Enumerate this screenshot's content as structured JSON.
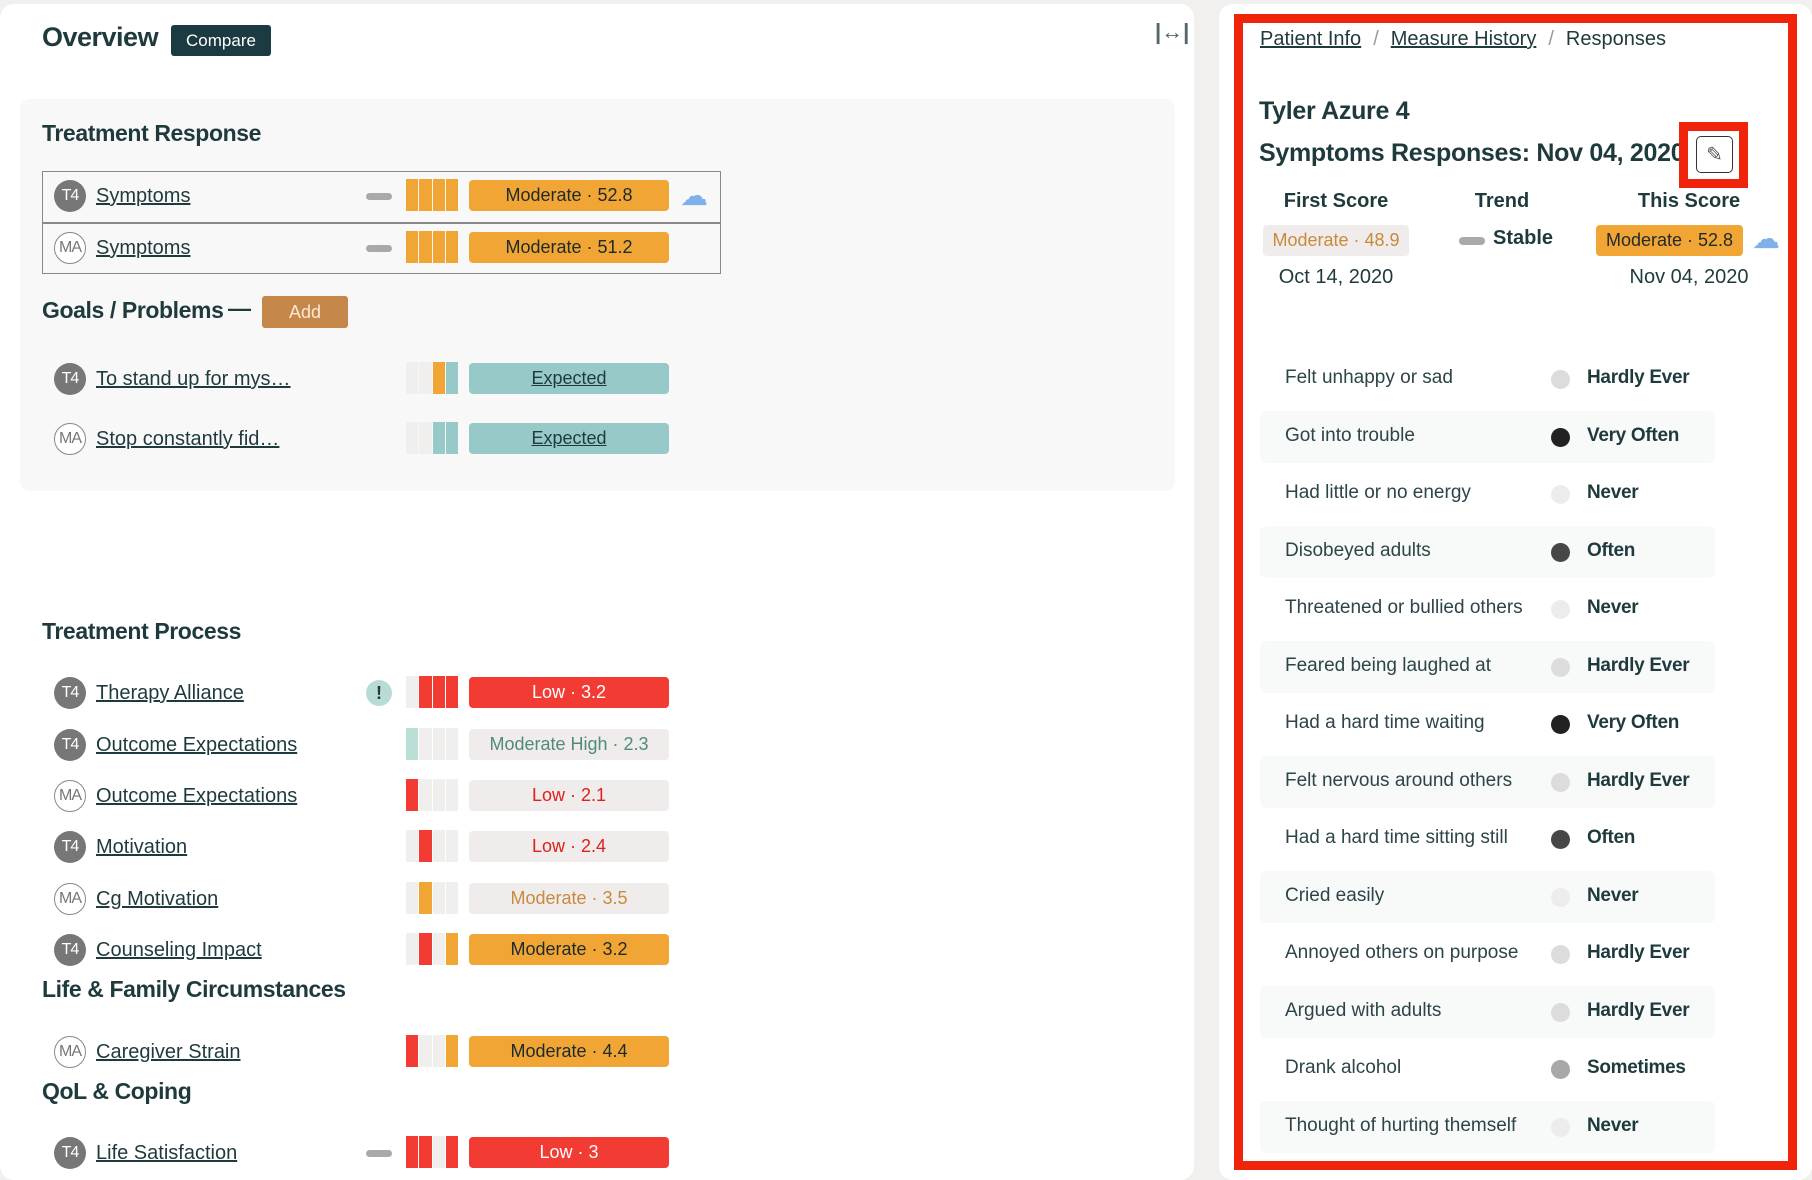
{
  "colors": {
    "orange": "#f0a535",
    "red": "#f23c33",
    "teal": "#97c9c9",
    "mint": "#b9dfd6",
    "empty": "#f0efee",
    "accent_dark": "#1c3a42",
    "highlight": "#f0240a"
  },
  "overview": {
    "title": "Overview",
    "compare_label": "Compare",
    "expand_icon": "expand-horizontal-icon"
  },
  "treatment_response": {
    "heading": "Treatment Response",
    "rows": [
      {
        "badge": "T4",
        "name": "Symptoms",
        "trend": "dash",
        "bars": [
          "orange",
          "orange",
          "orange",
          "orange"
        ],
        "score": "Moderate · 52.8",
        "style": "orange",
        "icon": "rain-cloud-icon"
      },
      {
        "badge": "MA",
        "name": "Symptoms",
        "trend": "dash",
        "bars": [
          "orange",
          "orange",
          "orange",
          "orange"
        ],
        "score": "Moderate · 51.2",
        "style": "orange"
      }
    ]
  },
  "goals": {
    "heading": "Goals / Problems",
    "dash": "—",
    "add_label": "Add",
    "rows": [
      {
        "badge": "T4",
        "name": "To stand up for mys…",
        "bars": [
          "empty",
          "empty",
          "orange",
          "teal"
        ],
        "score": "Expected",
        "style": "teal"
      },
      {
        "badge": "MA",
        "name": "Stop constantly fid…",
        "bars": [
          "empty",
          "empty",
          "teal",
          "teal"
        ],
        "score": "Expected",
        "style": "teal"
      }
    ]
  },
  "treatment_process": {
    "heading": "Treatment Process",
    "rows": [
      {
        "badge": "T4",
        "name": "Therapy Alliance",
        "trend": "alert",
        "alert": "!",
        "bars": [
          "empty",
          "red",
          "red",
          "red"
        ],
        "score": "Low · 3.2",
        "style": "red"
      },
      {
        "badge": "T4",
        "name": "Outcome Expectations",
        "bars": [
          "mint",
          "empty",
          "empty",
          "empty"
        ],
        "score": "Moderate High · 2.3",
        "style": "gray-green"
      },
      {
        "badge": "MA",
        "name": "Outcome Expectations",
        "bars": [
          "red",
          "empty",
          "empty",
          "empty"
        ],
        "score": "Low · 2.1",
        "style": "gray-red"
      },
      {
        "badge": "T4",
        "name": "Motivation",
        "bars": [
          "empty",
          "red",
          "empty",
          "empty"
        ],
        "score": "Low · 2.4",
        "style": "gray-red"
      },
      {
        "badge": "MA",
        "name": "Cg Motivation",
        "bars": [
          "empty",
          "orange",
          "empty",
          "empty"
        ],
        "score": "Moderate · 3.5",
        "style": "gray-orange"
      },
      {
        "badge": "T4",
        "name": "Counseling Impact",
        "bars": [
          "empty",
          "red",
          "empty",
          "orange"
        ],
        "score": "Moderate · 3.2",
        "style": "orange"
      }
    ]
  },
  "life_family": {
    "heading": "Life & Family Circumstances",
    "rows": [
      {
        "badge": "MA",
        "name": "Caregiver Strain",
        "bars": [
          "red",
          "empty",
          "empty",
          "orange"
        ],
        "score": "Moderate · 4.4",
        "style": "orange"
      }
    ]
  },
  "qol": {
    "heading": "QoL & Coping",
    "rows": [
      {
        "badge": "T4",
        "name": "Life Satisfaction",
        "trend": "dash",
        "bars": [
          "red",
          "red",
          "empty",
          "red"
        ],
        "score": "Low · 3",
        "style": "red"
      }
    ]
  },
  "detail": {
    "breadcrumb": {
      "patient_info": "Patient Info",
      "measure_history": "Measure History",
      "current": "Responses",
      "separator": "/"
    },
    "patient_name": "Tyler Azure 4",
    "title": "Symptoms Responses: Nov 04, 2020",
    "edit_icon": "pencil-icon",
    "first_score": {
      "header": "First Score",
      "value": "Moderate · 48.9",
      "date": "Oct 14, 2020"
    },
    "trend": {
      "header": "Trend",
      "value": "Stable"
    },
    "this_score": {
      "header": "This Score",
      "value": "Moderate · 52.8",
      "date": "Nov 04, 2020",
      "icon": "rain-cloud-icon"
    },
    "responses": [
      {
        "question": "Felt unhappy or sad",
        "answer": "Hardly Ever",
        "dot": "#dcdcdc"
      },
      {
        "question": "Got into trouble",
        "answer": "Very Often",
        "dot": "#222222"
      },
      {
        "question": "Had little or no energy",
        "answer": "Never",
        "dot": "#ececec"
      },
      {
        "question": "Disobeyed adults",
        "answer": "Often",
        "dot": "#474747"
      },
      {
        "question": "Threatened or bullied others",
        "answer": "Never",
        "dot": "#ececec"
      },
      {
        "question": "Feared being laughed at",
        "answer": "Hardly Ever",
        "dot": "#dcdcdc"
      },
      {
        "question": "Had a hard time waiting",
        "answer": "Very Often",
        "dot": "#222222"
      },
      {
        "question": "Felt nervous around others",
        "answer": "Hardly Ever",
        "dot": "#dcdcdc"
      },
      {
        "question": "Had a hard time sitting still",
        "answer": "Often",
        "dot": "#474747"
      },
      {
        "question": "Cried easily",
        "answer": "Never",
        "dot": "#ececec"
      },
      {
        "question": "Annoyed others on purpose",
        "answer": "Hardly Ever",
        "dot": "#dcdcdc"
      },
      {
        "question": "Argued with adults",
        "answer": "Hardly Ever",
        "dot": "#dcdcdc"
      },
      {
        "question": "Drank alcohol",
        "answer": "Sometimes",
        "dot": "#a8a8a8"
      },
      {
        "question": "Thought of hurting themself",
        "answer": "Never",
        "dot": "#ececec"
      }
    ]
  }
}
